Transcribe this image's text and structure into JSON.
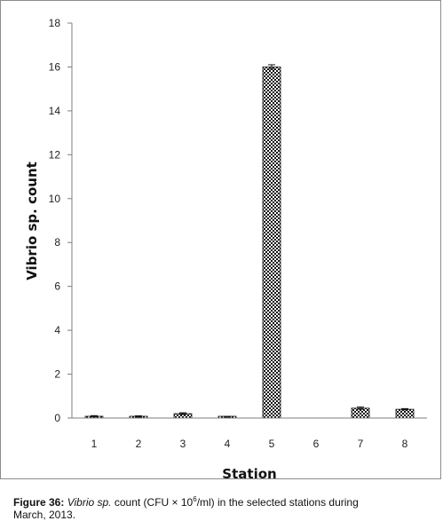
{
  "chart_data": {
    "type": "bar",
    "categories": [
      "1",
      "2",
      "3",
      "4",
      "5",
      "6",
      "7",
      "8"
    ],
    "values": [
      0.08,
      0.07,
      0.2,
      0.05,
      16.0,
      0,
      0.45,
      0.4
    ],
    "errors": [
      0.03,
      0.03,
      0.04,
      0.02,
      0.1,
      0,
      0.05,
      0.03
    ],
    "xlabel": "Station",
    "ylabel": "Vibrio sp. count",
    "ylim": [
      0,
      18
    ],
    "yticks": [
      0,
      2,
      4,
      6,
      8,
      10,
      12,
      14,
      16,
      18
    ],
    "grid": false,
    "legend": "none",
    "bar_pattern": "checkered black and white"
  },
  "caption": {
    "label": "Figure 36:",
    "italic_part": "Vibrio sp.",
    "text_line1": " count (CFU × 10",
    "superscript": "6",
    "text_line1_end": "/ml) in the selected stations during",
    "text_line2": "March, 2013."
  },
  "colors": {
    "bar_dark": "#111111",
    "bar_light": "#ffffff",
    "axis": "#7f7f7f"
  }
}
